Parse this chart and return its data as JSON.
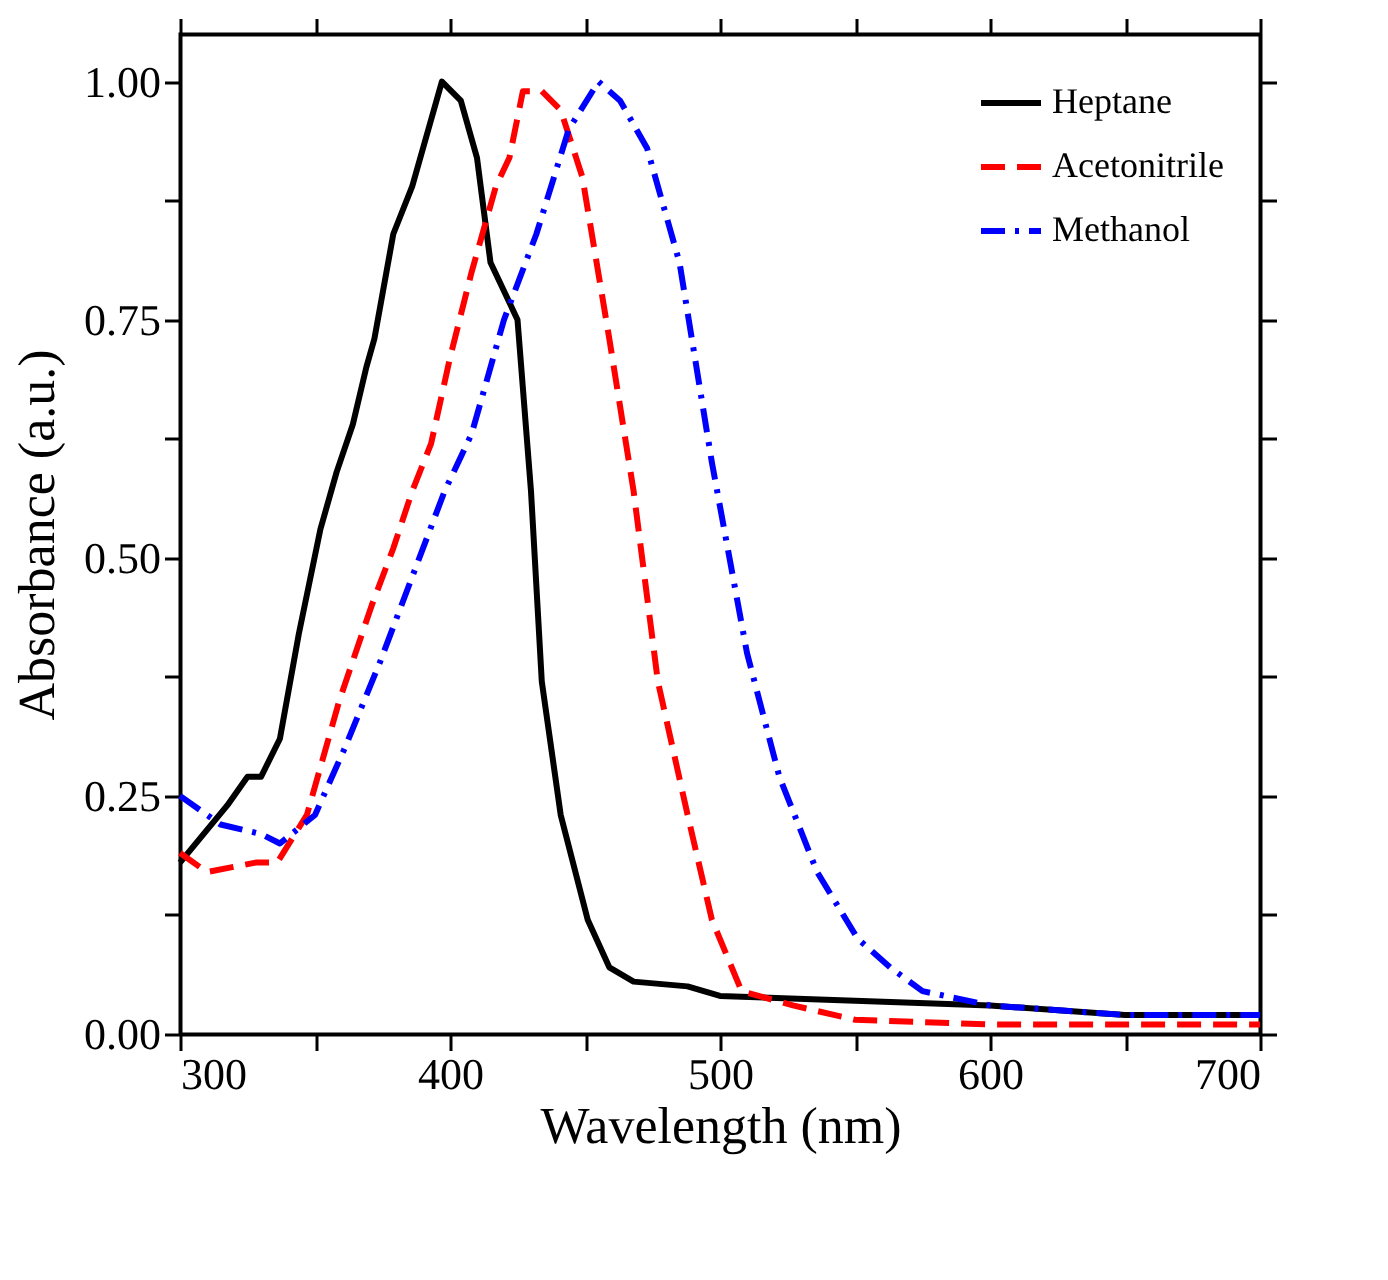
{
  "chart_data": {
    "type": "line",
    "xlabel": "Wavelength (nm)",
    "ylabel": "Absorbance (a.u.)",
    "xlim": [
      300,
      700
    ],
    "ylim": [
      0,
      1.05
    ],
    "xticks": [
      300,
      {
        "value": 350,
        "label": null
      },
      400,
      {
        "value": 450,
        "label": null
      },
      500,
      {
        "value": 550,
        "label": null
      },
      600,
      {
        "value": 650,
        "label": null
      },
      700
    ],
    "yticks": [
      {
        "value": 0,
        "label": "0.00"
      },
      {
        "value": 0.125,
        "label": null
      },
      {
        "value": 0.25,
        "label": "0.25"
      },
      {
        "value": 0.375,
        "label": null
      },
      {
        "value": 0.5,
        "label": "0.50"
      },
      {
        "value": 0.625,
        "label": null
      },
      {
        "value": 0.75,
        "label": "0.75"
      },
      {
        "value": 0.875,
        "label": null
      },
      {
        "value": 1.0,
        "label": "1.00"
      }
    ],
    "grid": false,
    "legend": "top right",
    "marker": "none",
    "series": [
      {
        "name": "Heptane",
        "color": "#000000",
        "line_style": "solid",
        "x": [
          300,
          317.5,
          325,
          330,
          337,
          344,
          352,
          358,
          364,
          369,
          372,
          379,
          386,
          392,
          397,
          404,
          410,
          415,
          425,
          430,
          434,
          441,
          451,
          459,
          468,
          488,
          500,
          550,
          600,
          650,
          700
        ],
        "values": [
          0.18,
          0.24,
          0.27,
          0.27,
          0.31,
          0.42,
          0.53,
          0.59,
          0.64,
          0.7,
          0.73,
          0.84,
          0.89,
          0.95,
          1.0,
          0.98,
          0.92,
          0.81,
          0.75,
          0.57,
          0.37,
          0.23,
          0.12,
          0.07,
          0.055,
          0.05,
          0.04,
          0.035,
          0.03,
          0.02,
          0.02
        ]
      },
      {
        "name": "Acetonitrile",
        "color": "#ff0000",
        "line_style": "dashed",
        "x": [
          300,
          310,
          328,
          336,
          347,
          359,
          371,
          379,
          386,
          393,
          400,
          408,
          412,
          417,
          422,
          427,
          434,
          441,
          449,
          459,
          468,
          477,
          488,
          497,
          508,
          527,
          550,
          600,
          650,
          700
        ],
        "values": [
          0.19,
          0.17,
          0.18,
          0.18,
          0.23,
          0.35,
          0.45,
          0.51,
          0.57,
          0.62,
          0.71,
          0.8,
          0.84,
          0.89,
          0.92,
          0.99,
          0.99,
          0.97,
          0.9,
          0.73,
          0.57,
          0.37,
          0.23,
          0.12,
          0.045,
          0.03,
          0.015,
          0.01,
          0.01,
          0.01
        ]
      },
      {
        "name": "Methanol",
        "color": "#0000ff",
        "line_style": "dashdot",
        "x": [
          300,
          315,
          330,
          337,
          350,
          361,
          374,
          386,
          398,
          408,
          420,
          432,
          444,
          455,
          463,
          473,
          485,
          497,
          510,
          522,
          536,
          551,
          563,
          575,
          600,
          650,
          700
        ],
        "values": [
          0.25,
          0.22,
          0.21,
          0.2,
          0.23,
          0.3,
          0.39,
          0.48,
          0.57,
          0.63,
          0.75,
          0.84,
          0.95,
          1.0,
          0.98,
          0.93,
          0.81,
          0.6,
          0.4,
          0.27,
          0.17,
          0.1,
          0.07,
          0.045,
          0.03,
          0.02,
          0.02
        ]
      }
    ]
  }
}
